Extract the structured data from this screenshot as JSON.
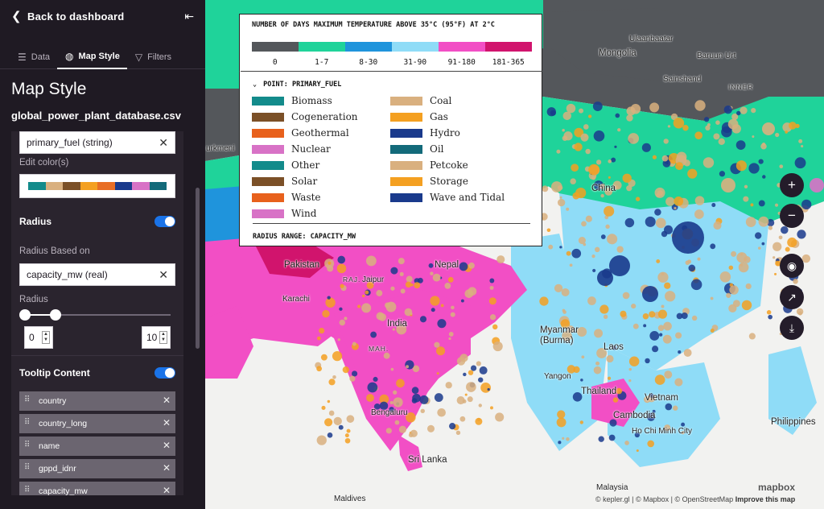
{
  "sidebar": {
    "back_label": "Back to dashboard",
    "tabs": [
      {
        "label": "Data"
      },
      {
        "label": "Map Style"
      },
      {
        "label": "Filters"
      }
    ],
    "panel_title": "Map Style",
    "dataset_name": "global_power_plant_database.csv",
    "color_field": "primary_fuel (string)",
    "edit_colors_label": "Edit color(s)",
    "palette": [
      "#138b8b",
      "#d9b07f",
      "#7b5027",
      "#f4a021",
      "#e86e25",
      "#1a3a8c",
      "#d872c6",
      "#136a7a"
    ],
    "radius_label": "Radius",
    "radius_based_on_label": "Radius Based on",
    "radius_field": "capacity_mw (real)",
    "radius_slider_label": "Radius",
    "radius_min": "0",
    "radius_max": "10",
    "tooltip_label": "Tooltip Content",
    "tooltip_fields": [
      "country",
      "country_long",
      "name",
      "gppd_idnr",
      "capacity_mw"
    ]
  },
  "legend": {
    "temp_title": "NUMBER OF DAYS MAXIMUM TEMPERATURE ABOVE 35°C (95°F) AT 2°C",
    "temp_bins": [
      {
        "label": "0",
        "color": "#54575b"
      },
      {
        "label": "1-7",
        "color": "#1fd39a"
      },
      {
        "label": "8-30",
        "color": "#1f94dc"
      },
      {
        "label": "31-90",
        "color": "#8fdcf7"
      },
      {
        "label": "91-180",
        "color": "#f24fc5"
      },
      {
        "label": "181-365",
        "color": "#d1146d"
      }
    ],
    "point_title": "POINT: PRIMARY_FUEL",
    "fuels_left": [
      {
        "name": "Biomass",
        "color": "#138b8b"
      },
      {
        "name": "Cogeneration",
        "color": "#7b5027"
      },
      {
        "name": "Geothermal",
        "color": "#e8611c"
      },
      {
        "name": "Nuclear",
        "color": "#d872c6"
      },
      {
        "name": "Other",
        "color": "#138b8b"
      },
      {
        "name": "Solar",
        "color": "#7b5027"
      },
      {
        "name": "Waste",
        "color": "#e8611c"
      },
      {
        "name": "Wind",
        "color": "#d872c6"
      }
    ],
    "fuels_right": [
      {
        "name": "Coal",
        "color": "#d9b07f"
      },
      {
        "name": "Gas",
        "color": "#f4a021"
      },
      {
        "name": "Hydro",
        "color": "#1a3a8c"
      },
      {
        "name": "Oil",
        "color": "#136a7a"
      },
      {
        "name": "Petcoke",
        "color": "#d9b07f"
      },
      {
        "name": "Storage",
        "color": "#f4a021"
      },
      {
        "name": "Wave and Tidal",
        "color": "#1a3a8c"
      }
    ],
    "radius_range": "RADIUS RANGE: CAPACITY_MW"
  },
  "places": {
    "mongolia": "Mongolia",
    "ulaanbaatar": "Ulaanbaatar",
    "baruun_urt": "Baruun Urt",
    "sainshand": "Sainshand",
    "inner_mongolia": "INNER",
    "turkmeni": "urkmeni",
    "pakistan": "Pakistan",
    "nepal": "Nepal",
    "raj": "RAJ.",
    "jaipur": "Jaipur",
    "india": "India",
    "karachi": "Karachi",
    "mah": "MAH.",
    "bengaluru": "Bengaluru",
    "sri_lanka": "Sri Lanka",
    "maldives": "Maldives",
    "myanmar": "Myanmar\n(Burma)",
    "china": "China",
    "yangon": "Yangon",
    "laos": "Laos",
    "thailand": "Thailand",
    "vietnam": "Vietnam",
    "cambodia": "Cambodia",
    "hcm": "Ho Chi Minh City",
    "philippines": "Philippines",
    "malaysia": "Malaysia"
  },
  "map_controls": {
    "zoom_in": "+",
    "zoom_out": "−"
  },
  "attribution": {
    "kepler": "© kepler.gl",
    "mapbox": "© Mapbox",
    "osm": "© OpenStreetMap",
    "improve": "Improve this map",
    "logo": "mapbox"
  }
}
